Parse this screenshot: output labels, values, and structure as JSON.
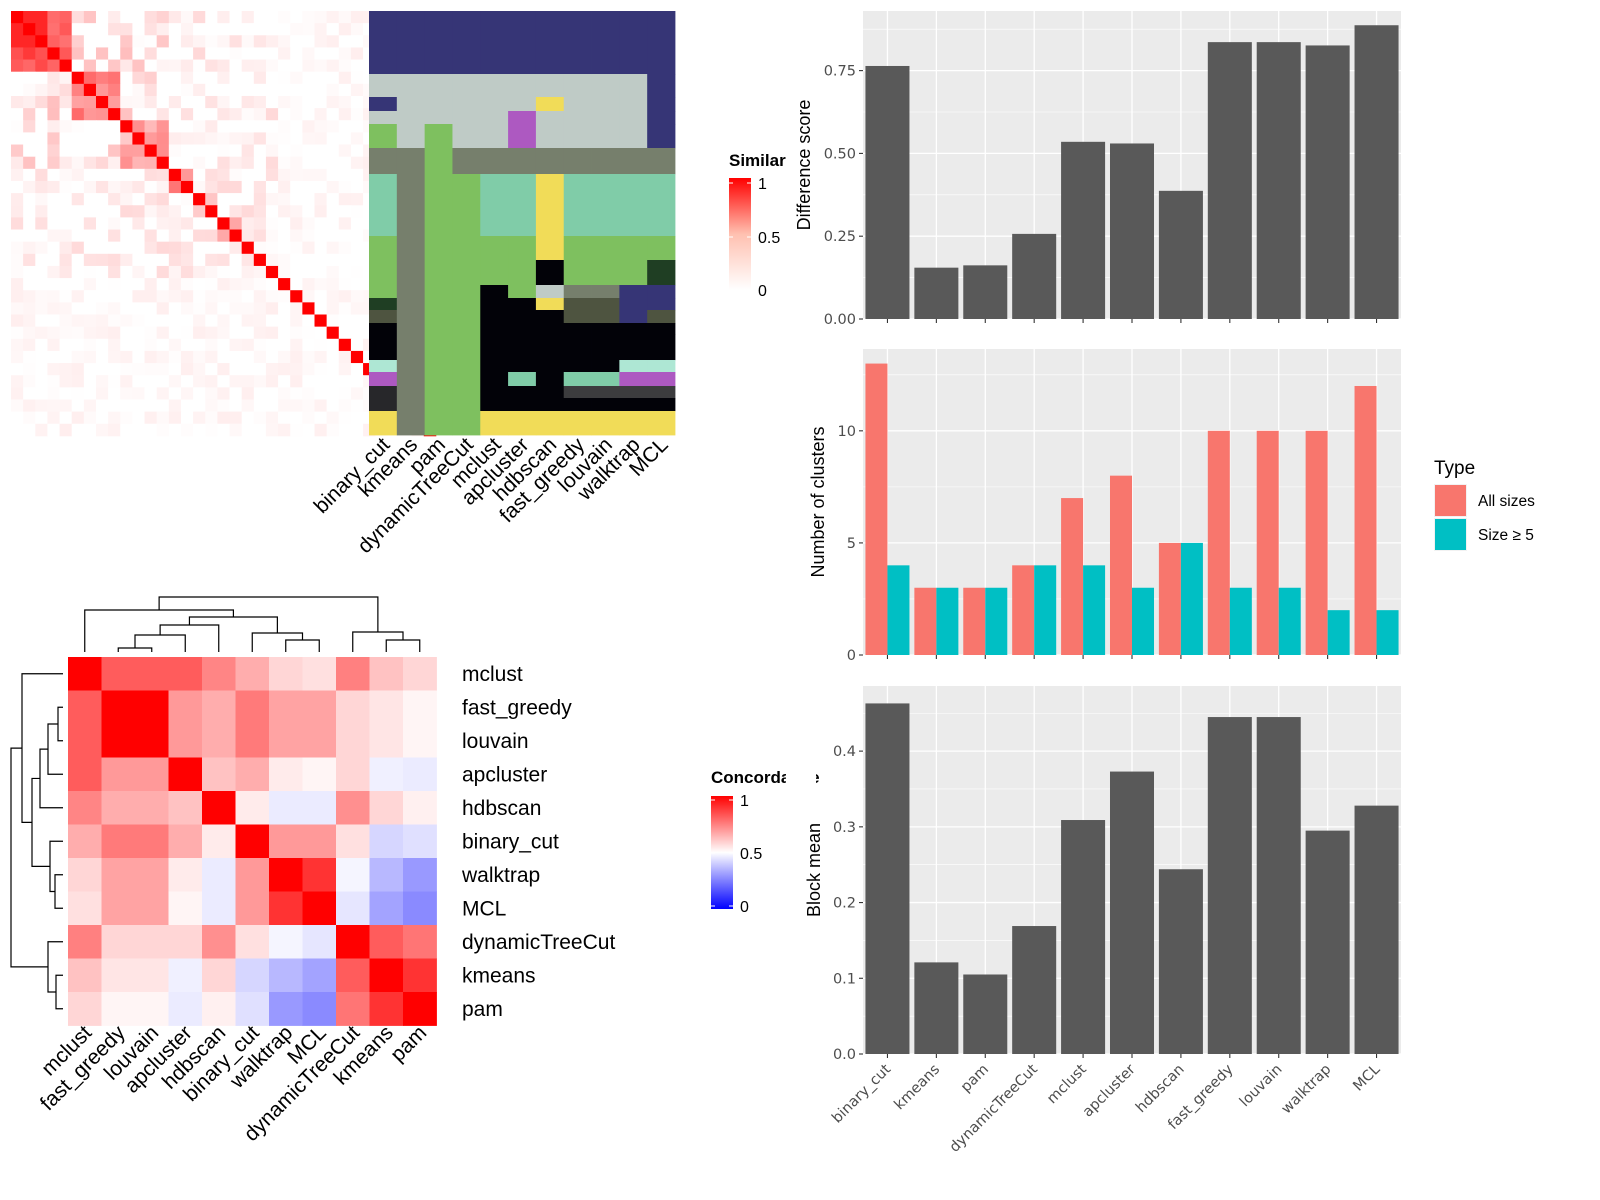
{
  "chart_data": [
    {
      "id": "similarity-heatmap",
      "type": "heatmap",
      "legend_title": "Similarity",
      "legend_ticks": [
        "1",
        "0.5",
        "0"
      ],
      "scale": [
        0,
        1
      ],
      "colors": {
        "low": "#ffffff",
        "mid": "#ffc0b0",
        "high": "#ff0000"
      }
    },
    {
      "id": "class-assignment-heatmap",
      "type": "heatmap",
      "columns": [
        "binary_cut",
        "kmeans",
        "pam",
        "dynamicTreeCut",
        "mclust",
        "apcluster",
        "hdbscan",
        "fast_greedy",
        "louvain",
        "walktrap",
        "MCL"
      ]
    },
    {
      "id": "concordance-heatmap",
      "type": "heatmap",
      "legend_title": "Concordance",
      "legend_ticks": [
        "1",
        "0.5",
        "0"
      ],
      "rows": [
        "mclust",
        "fast_greedy",
        "louvain",
        "apcluster",
        "hdbscan",
        "binary_cut",
        "walktrap",
        "MCL",
        "dynamicTreeCut",
        "kmeans",
        "pam"
      ],
      "columns": [
        "mclust",
        "fast_greedy",
        "louvain",
        "apcluster",
        "hdbscan",
        "binary_cut",
        "walktrap",
        "MCL",
        "dynamicTreeCut",
        "kmeans",
        "pam"
      ],
      "values": [
        [
          1.0,
          0.82,
          0.82,
          0.82,
          0.74,
          0.66,
          0.58,
          0.56,
          0.75,
          0.62,
          0.58
        ],
        [
          0.82,
          1.0,
          1.0,
          0.7,
          0.66,
          0.76,
          0.68,
          0.68,
          0.58,
          0.55,
          0.52
        ],
        [
          0.82,
          1.0,
          1.0,
          0.7,
          0.66,
          0.76,
          0.68,
          0.68,
          0.58,
          0.55,
          0.52
        ],
        [
          0.82,
          0.7,
          0.7,
          1.0,
          0.62,
          0.66,
          0.54,
          0.52,
          0.58,
          0.47,
          0.46
        ],
        [
          0.74,
          0.66,
          0.66,
          0.62,
          1.0,
          0.54,
          0.46,
          0.46,
          0.72,
          0.58,
          0.53
        ],
        [
          0.66,
          0.76,
          0.76,
          0.66,
          0.54,
          1.0,
          0.7,
          0.7,
          0.56,
          0.42,
          0.44
        ],
        [
          0.58,
          0.68,
          0.68,
          0.54,
          0.46,
          0.7,
          1.0,
          0.9,
          0.48,
          0.36,
          0.3
        ],
        [
          0.56,
          0.68,
          0.68,
          0.52,
          0.46,
          0.7,
          0.9,
          1.0,
          0.45,
          0.32,
          0.27
        ],
        [
          0.75,
          0.58,
          0.58,
          0.58,
          0.72,
          0.56,
          0.48,
          0.45,
          1.0,
          0.82,
          0.77
        ],
        [
          0.62,
          0.55,
          0.55,
          0.47,
          0.58,
          0.42,
          0.36,
          0.32,
          0.82,
          1.0,
          0.9
        ],
        [
          0.58,
          0.52,
          0.52,
          0.46,
          0.53,
          0.44,
          0.3,
          0.27,
          0.77,
          0.9,
          1.0
        ]
      ]
    },
    {
      "id": "difference-score-bar",
      "type": "bar",
      "categories": [
        "binary_cut",
        "kmeans",
        "pam",
        "dynamicTreeCut",
        "mclust",
        "apcluster",
        "hdbscan",
        "fast_greedy",
        "louvain",
        "walktrap",
        "MCL"
      ],
      "values": [
        0.764,
        0.155,
        0.162,
        0.257,
        0.535,
        0.53,
        0.387,
        0.836,
        0.836,
        0.826,
        0.887
      ],
      "ylabel": "Difference score",
      "ylim": [
        0,
        0.93
      ],
      "yticks": [
        0,
        0.25,
        0.5,
        0.75
      ],
      "ytick_labels": [
        "0.00",
        "0.25",
        "0.50",
        "0.75"
      ],
      "grid": true
    },
    {
      "id": "number-of-clusters-bar",
      "type": "bar",
      "categories": [
        "binary_cut",
        "kmeans",
        "pam",
        "dynamicTreeCut",
        "mclust",
        "apcluster",
        "hdbscan",
        "fast_greedy",
        "louvain",
        "walktrap",
        "MCL"
      ],
      "series": [
        {
          "name": "All sizes",
          "color": "#F8766D",
          "values": [
            13,
            3,
            3,
            4,
            7,
            8,
            5,
            10,
            10,
            10,
            12
          ]
        },
        {
          "name": "Size ≥ 5",
          "color": "#00BFC4",
          "values": [
            4,
            3,
            3,
            4,
            4,
            3,
            5,
            3,
            3,
            2,
            2
          ]
        }
      ],
      "ylabel": "Number of clusters",
      "ylim": [
        0,
        13.65
      ],
      "yticks": [
        0,
        5,
        10
      ],
      "ytick_labels": [
        "0",
        "5",
        "10"
      ],
      "legend_title": "Type",
      "legend_position": "right",
      "grid": true
    },
    {
      "id": "block-mean-bar",
      "type": "bar",
      "categories": [
        "binary_cut",
        "kmeans",
        "pam",
        "dynamicTreeCut",
        "mclust",
        "apcluster",
        "hdbscan",
        "fast_greedy",
        "louvain",
        "walktrap",
        "MCL"
      ],
      "values": [
        0.463,
        0.121,
        0.105,
        0.169,
        0.309,
        0.373,
        0.244,
        0.445,
        0.445,
        0.295,
        0.328
      ],
      "ylabel": "Block mean",
      "ylim": [
        0,
        0.486
      ],
      "yticks": [
        0,
        0.1,
        0.2,
        0.3,
        0.4
      ],
      "ytick_labels": [
        "0.0",
        "0.1",
        "0.2",
        "0.3",
        "0.4"
      ],
      "grid": true
    }
  ]
}
